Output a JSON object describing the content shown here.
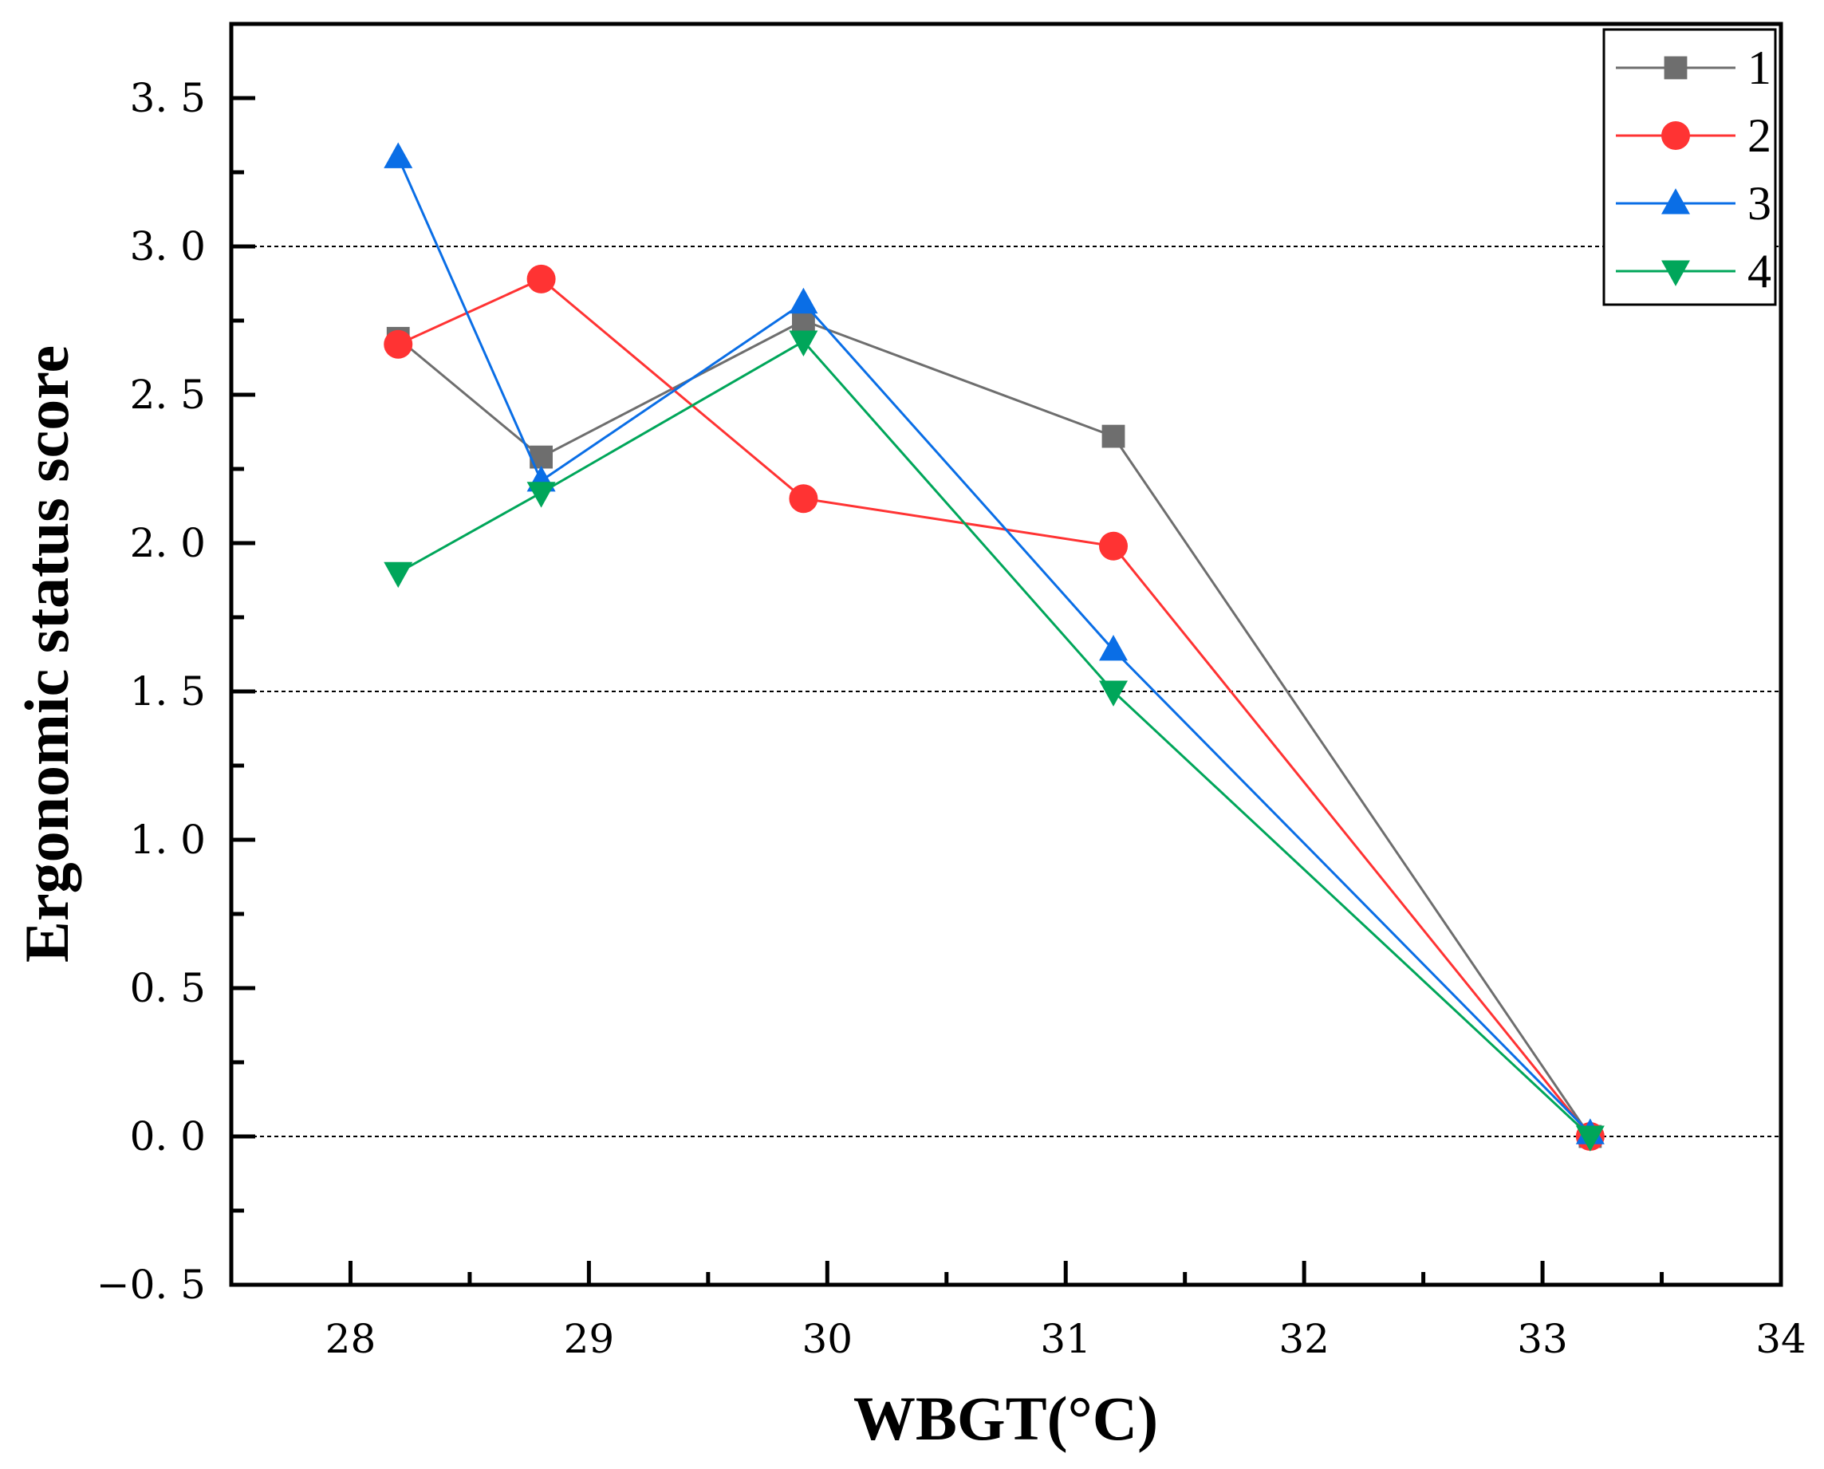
{
  "chart_data": {
    "type": "line",
    "title": "",
    "xlabel": "WBGT(°C)",
    "ylabel": "Ergonomic status score",
    "xlim": [
      27.5,
      34
    ],
    "ylim": [
      -0.5,
      3.75
    ],
    "xticks": [
      28,
      29,
      30,
      31,
      32,
      33,
      34
    ],
    "xtick_labels": [
      "28",
      "29",
      "30",
      "31",
      "32",
      "33",
      "34"
    ],
    "yticks": [
      -0.5,
      0.0,
      0.5,
      1.0,
      1.5,
      2.0,
      2.5,
      3.0,
      3.5
    ],
    "ytick_labels": [
      "−0. 5",
      "0. 0",
      "0. 5",
      "1. 0",
      "1. 5",
      "2. 0",
      "2. 5",
      "3. 0",
      "3. 5"
    ],
    "reference_lines": [
      0.0,
      1.5,
      3.0
    ],
    "legend_position": "top-right",
    "x": [
      28.2,
      28.8,
      29.9,
      31.2,
      33.2
    ],
    "series": [
      {
        "name": "1",
        "color": "#6e6e6e",
        "marker": "square",
        "values": [
          2.69,
          2.29,
          2.75,
          2.36,
          0.0
        ]
      },
      {
        "name": "2",
        "color": "#ff3333",
        "marker": "circle",
        "values": [
          2.67,
          2.89,
          2.15,
          1.99,
          0.0
        ]
      },
      {
        "name": "3",
        "color": "#0a6ee6",
        "marker": "triangle-up",
        "values": [
          3.3,
          2.21,
          2.81,
          1.64,
          0.01
        ]
      },
      {
        "name": "4",
        "color": "#00a65a",
        "marker": "triangle-down",
        "values": [
          1.9,
          2.17,
          2.68,
          1.5,
          0.0
        ]
      }
    ]
  }
}
